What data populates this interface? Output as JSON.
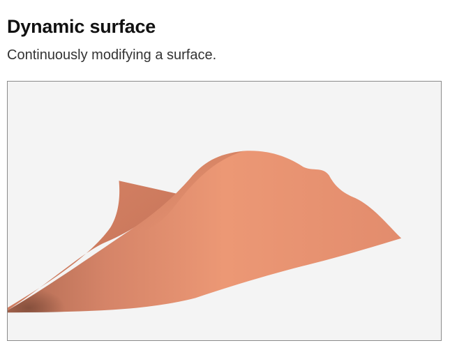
{
  "header": {
    "title": "Dynamic surface",
    "subtitle": "Continuously modifying a surface."
  },
  "viewport": {
    "background_color": "#f4f4f4",
    "border_color": "#8a8a8a",
    "surface_color": "#e8916f",
    "surface_shadow_color": "#8f5642",
    "surface_highlight_color": "#f0a07f"
  }
}
